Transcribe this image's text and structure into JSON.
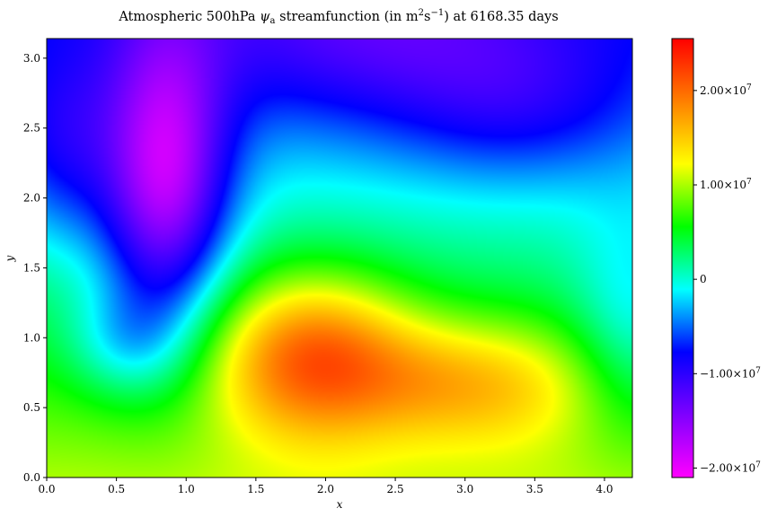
{
  "chart_data": {
    "type": "heatmap",
    "title": {
      "prefix": "Atmospheric 500hPa ",
      "psi": "ψ",
      "psi_sub": "a",
      "mid": " streamfunction (in m",
      "m_exp": "2",
      "s": "s",
      "s_exp": "−1",
      "suffix": ") at 6168.35 days"
    },
    "xlabel": "x",
    "ylabel": "y",
    "xlim": [
      0,
      4.2
    ],
    "ylim": [
      0,
      3.14
    ],
    "x_ticks": [
      0.0,
      0.5,
      1.0,
      1.5,
      2.0,
      2.5,
      3.0,
      3.5,
      4.0
    ],
    "x_tick_labels": [
      "0.0",
      "0.5",
      "1.0",
      "1.5",
      "2.0",
      "2.5",
      "3.0",
      "3.5",
      "4.0"
    ],
    "y_ticks": [
      0.0,
      0.5,
      1.0,
      1.5,
      2.0,
      2.5,
      3.0
    ],
    "y_tick_labels": [
      "0.0",
      "0.5",
      "1.0",
      "1.5",
      "2.0",
      "2.5",
      "3.0"
    ],
    "colormap": "gist_rainbow_r",
    "colormap_stops": [
      "#ff00ff",
      "#7f00ff",
      "#0000ff",
      "#00ffff",
      "#00ff00",
      "#ffff00",
      "#ff7f00",
      "#ff0000"
    ],
    "vmin": -21000000,
    "vmax": 25500000,
    "colorbar_ticks": [
      -20000000,
      -10000000,
      0,
      10000000,
      20000000
    ],
    "colorbar_tick_labels": [
      {
        "mant": "−2.00×10",
        "exp": "7"
      },
      {
        "mant": "−1.00×10",
        "exp": "7"
      },
      {
        "mant": "0",
        "exp": ""
      },
      {
        "mant": "1.00×10",
        "exp": "7"
      },
      {
        "mant": "2.00×10",
        "exp": "7"
      }
    ],
    "field": {
      "background": 10000000,
      "y_gradient": -16000000,
      "features": [
        {
          "kind": "high",
          "x": 1.9,
          "y": 0.87,
          "sx": 0.5,
          "sy": 0.42,
          "amp": 15000000
        },
        {
          "kind": "high",
          "x": 3.2,
          "y": 0.68,
          "sx": 0.55,
          "sy": 0.33,
          "amp": 8000000
        },
        {
          "kind": "high",
          "x": 2.6,
          "y": 0.72,
          "sx": 0.4,
          "sy": 0.3,
          "amp": 2500000
        },
        {
          "kind": "low",
          "x": 0.85,
          "y": 2.1,
          "sx": 0.32,
          "sy": 0.75,
          "amp": -17000000
        },
        {
          "kind": "low",
          "x": 0.55,
          "y": 0.95,
          "sx": 0.3,
          "sy": 0.28,
          "amp": -5000000
        },
        {
          "kind": "low",
          "x": 0.1,
          "y": 2.35,
          "sx": 0.3,
          "sy": 0.5,
          "amp": -6000000
        },
        {
          "kind": "low",
          "x": 3.4,
          "y": 2.65,
          "sx": 0.65,
          "sy": 0.4,
          "amp": -5000000
        },
        {
          "kind": "low",
          "x": 2.3,
          "y": 3.14,
          "sx": 0.9,
          "sy": 0.45,
          "amp": -6000000
        },
        {
          "kind": "low",
          "x": 4.2,
          "y": 1.05,
          "sx": 0.3,
          "sy": 0.55,
          "amp": -5000000
        }
      ]
    }
  }
}
